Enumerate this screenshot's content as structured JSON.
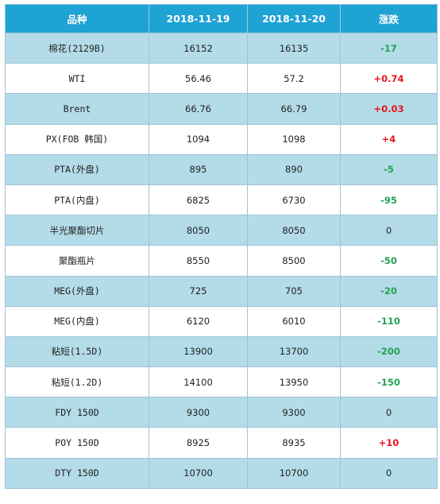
{
  "table": {
    "headers": [
      "品种",
      "2018-11-19",
      "2018-11-20",
      "涨跌"
    ],
    "rows": [
      {
        "name": "棉花(2129B)",
        "v1": "16152",
        "v2": "16135",
        "change": "-17"
      },
      {
        "name": "WTI",
        "v1": "56.46",
        "v2": "57.2",
        "change": "+0.74"
      },
      {
        "name": "Brent",
        "v1": "66.76",
        "v2": "66.79",
        "change": "+0.03"
      },
      {
        "name": "PX(FOB 韩国)",
        "v1": "1094",
        "v2": "1098",
        "change": "+4"
      },
      {
        "name": "PTA(外盘)",
        "v1": "895",
        "v2": "890",
        "change": "-5"
      },
      {
        "name": "PTA(内盘)",
        "v1": "6825",
        "v2": "6730",
        "change": "-95"
      },
      {
        "name": "半光聚酯切片",
        "v1": "8050",
        "v2": "8050",
        "change": "0"
      },
      {
        "name": "聚酯瓶片",
        "v1": "8550",
        "v2": "8500",
        "change": "-50"
      },
      {
        "name": "MEG(外盘)",
        "v1": "725",
        "v2": "705",
        "change": "-20"
      },
      {
        "name": "MEG(内盘)",
        "v1": "6120",
        "v2": "6010",
        "change": "-110"
      },
      {
        "name": "粘短(1.5D)",
        "v1": "13900",
        "v2": "13700",
        "change": "-200"
      },
      {
        "name": "粘短(1.2D)",
        "v1": "14100",
        "v2": "13950",
        "change": "-150"
      },
      {
        "name": "FDY 150D",
        "v1": "9300",
        "v2": "9300",
        "change": "0"
      },
      {
        "name": "POY 150D",
        "v1": "8925",
        "v2": "8935",
        "change": "+10"
      },
      {
        "name": "DTY 150D",
        "v1": "10700",
        "v2": "10700",
        "change": "0"
      }
    ]
  },
  "colors": {
    "header_bg": "#1fa2d4",
    "row_shaded": "#b3dbe8",
    "up": "#e8141c",
    "down": "#23a252"
  }
}
